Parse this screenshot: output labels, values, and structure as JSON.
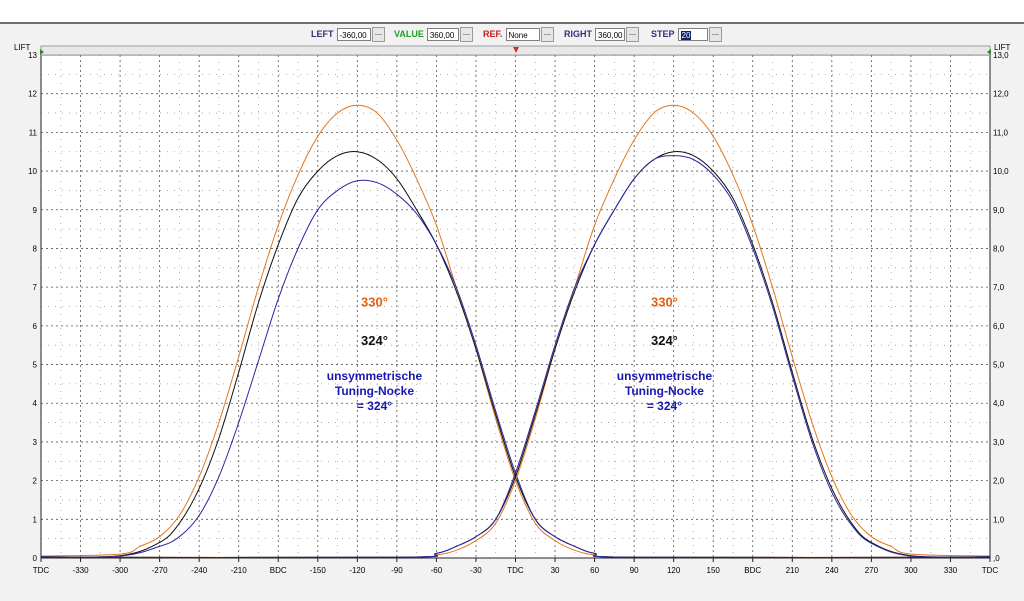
{
  "toolbar": {
    "left_label": "LEFT",
    "left_value": "-360,00",
    "value_label": "VALUE",
    "value_value": "360,00",
    "ref_label": "REF.",
    "ref_value": "None",
    "right_label": "RIGHT",
    "right_value": "360,00",
    "step_label": "STEP",
    "step_value": "20",
    "colors": {
      "left": "#303080",
      "value": "#20a020",
      "ref": "#c02020",
      "right": "#303080",
      "step": "#303080"
    }
  },
  "chart_data": {
    "type": "line",
    "title": "",
    "xlabel": "",
    "ylabel": "LIFT",
    "ylabel_right": "LIFT",
    "xlim": [
      -360,
      360
    ],
    "ylim": [
      0,
      13
    ],
    "x_ticks": [
      -360,
      -330,
      -300,
      -270,
      -240,
      -210,
      -180,
      -150,
      -120,
      -90,
      -60,
      -30,
      0,
      30,
      60,
      90,
      120,
      150,
      180,
      210,
      240,
      270,
      300,
      330,
      360
    ],
    "x_tick_labels": [
      "TDC",
      "-330",
      "-300",
      "-270",
      "-240",
      "-210",
      "BDC",
      "-150",
      "-120",
      "-90",
      "-60",
      "-30",
      "TDC",
      "30",
      "60",
      "90",
      "120",
      "150",
      "BDC",
      "210",
      "240",
      "270",
      "300",
      "330",
      "TDC"
    ],
    "y_ticks": [
      0,
      1,
      2,
      3,
      4,
      5,
      6,
      7,
      8,
      9,
      10,
      11,
      12,
      13
    ],
    "y_tick_labels_left": [
      "0",
      "1",
      "2",
      "3",
      "4",
      "5",
      "6",
      "7",
      "8",
      "9",
      "10",
      "11",
      "12",
      "13"
    ],
    "y_tick_labels_right": [
      ",0",
      "1,0",
      "2,0",
      "3,0",
      "4,0",
      "5,0",
      "6,0",
      "7,0",
      "8,0",
      "9,0",
      "10,0",
      "11,0",
      "12,0",
      "13,0"
    ],
    "grid": true,
    "series": [
      {
        "color": "#e07820",
        "points": [
          [
            -360,
            0.05
          ],
          [
            -300,
            0.1
          ],
          [
            -285,
            0.3
          ],
          [
            -270,
            0.55
          ],
          [
            -255,
            1.1
          ],
          [
            -240,
            2.1
          ],
          [
            -225,
            3.5
          ],
          [
            -210,
            5.2
          ],
          [
            -195,
            7.0
          ],
          [
            -180,
            8.6
          ],
          [
            -165,
            9.9
          ],
          [
            -150,
            10.9
          ],
          [
            -135,
            11.5
          ],
          [
            -120,
            11.7
          ],
          [
            -105,
            11.5
          ],
          [
            -90,
            10.8
          ],
          [
            -75,
            9.8
          ],
          [
            -60,
            8.6
          ],
          [
            -45,
            7.0
          ],
          [
            -30,
            5.4
          ],
          [
            -15,
            3.6
          ],
          [
            0,
            2.0
          ],
          [
            15,
            0.9
          ],
          [
            30,
            0.45
          ],
          [
            45,
            0.2
          ],
          [
            60,
            0.08
          ],
          [
            90,
            0.02
          ],
          [
            360,
            0.02
          ]
        ]
      },
      {
        "color": "#101010",
        "points": [
          [
            -360,
            0.03
          ],
          [
            -300,
            0.06
          ],
          [
            -270,
            0.4
          ],
          [
            -255,
            0.9
          ],
          [
            -240,
            1.8
          ],
          [
            -225,
            3.1
          ],
          [
            -210,
            4.8
          ],
          [
            -195,
            6.6
          ],
          [
            -180,
            8.1
          ],
          [
            -165,
            9.3
          ],
          [
            -150,
            10.0
          ],
          [
            -135,
            10.4
          ],
          [
            -120,
            10.5
          ],
          [
            -105,
            10.3
          ],
          [
            -90,
            9.8
          ],
          [
            -75,
            9.0
          ],
          [
            -60,
            8.1
          ],
          [
            -45,
            6.9
          ],
          [
            -30,
            5.4
          ],
          [
            -15,
            3.7
          ],
          [
            0,
            2.1
          ],
          [
            15,
            1.0
          ],
          [
            30,
            0.55
          ],
          [
            45,
            0.3
          ],
          [
            60,
            0.12
          ],
          [
            90,
            0.02
          ],
          [
            360,
            0.02
          ]
        ]
      },
      {
        "color": "#2828a0",
        "points": [
          [
            -360,
            0.03
          ],
          [
            -300,
            0.05
          ],
          [
            -270,
            0.3
          ],
          [
            -255,
            0.55
          ],
          [
            -240,
            1.1
          ],
          [
            -225,
            2.1
          ],
          [
            -210,
            3.5
          ],
          [
            -195,
            5.1
          ],
          [
            -180,
            6.7
          ],
          [
            -165,
            8.0
          ],
          [
            -150,
            9.0
          ],
          [
            -135,
            9.5
          ],
          [
            -120,
            9.75
          ],
          [
            -105,
            9.7
          ],
          [
            -90,
            9.4
          ],
          [
            -75,
            8.9
          ],
          [
            -60,
            8.1
          ],
          [
            -45,
            7.0
          ],
          [
            -30,
            5.5
          ],
          [
            -15,
            3.8
          ],
          [
            0,
            2.2
          ],
          [
            15,
            1.0
          ],
          [
            30,
            0.55
          ],
          [
            45,
            0.3
          ],
          [
            60,
            0.12
          ],
          [
            90,
            0.02
          ],
          [
            360,
            0.02
          ]
        ]
      },
      {
        "color": "#e07820",
        "points": [
          [
            -360,
            0.02
          ],
          [
            -90,
            0.02
          ],
          [
            -60,
            0.08
          ],
          [
            -45,
            0.2
          ],
          [
            -30,
            0.45
          ],
          [
            -15,
            0.9
          ],
          [
            0,
            2.0
          ],
          [
            15,
            3.6
          ],
          [
            30,
            5.4
          ],
          [
            45,
            7.0
          ],
          [
            60,
            8.6
          ],
          [
            75,
            9.8
          ],
          [
            90,
            10.8
          ],
          [
            105,
            11.5
          ],
          [
            120,
            11.7
          ],
          [
            135,
            11.5
          ],
          [
            150,
            10.9
          ],
          [
            165,
            9.9
          ],
          [
            180,
            8.6
          ],
          [
            195,
            7.0
          ],
          [
            210,
            5.2
          ],
          [
            225,
            3.5
          ],
          [
            240,
            2.1
          ],
          [
            255,
            1.1
          ],
          [
            270,
            0.55
          ],
          [
            285,
            0.3
          ],
          [
            300,
            0.1
          ],
          [
            360,
            0.05
          ]
        ]
      },
      {
        "color": "#101010",
        "points": [
          [
            -360,
            0.02
          ],
          [
            -90,
            0.02
          ],
          [
            -60,
            0.12
          ],
          [
            -45,
            0.3
          ],
          [
            -30,
            0.55
          ],
          [
            -15,
            1.0
          ],
          [
            0,
            2.1
          ],
          [
            15,
            3.7
          ],
          [
            30,
            5.4
          ],
          [
            45,
            6.9
          ],
          [
            60,
            8.1
          ],
          [
            75,
            9.0
          ],
          [
            90,
            9.8
          ],
          [
            105,
            10.3
          ],
          [
            120,
            10.5
          ],
          [
            135,
            10.4
          ],
          [
            150,
            10.0
          ],
          [
            165,
            9.3
          ],
          [
            180,
            8.1
          ],
          [
            195,
            6.6
          ],
          [
            210,
            4.8
          ],
          [
            225,
            3.1
          ],
          [
            240,
            1.8
          ],
          [
            255,
            0.9
          ],
          [
            270,
            0.4
          ],
          [
            300,
            0.06
          ],
          [
            360,
            0.03
          ]
        ]
      },
      {
        "color": "#2828a0",
        "points": [
          [
            -360,
            0.02
          ],
          [
            -90,
            0.02
          ],
          [
            -60,
            0.12
          ],
          [
            -45,
            0.3
          ],
          [
            -30,
            0.55
          ],
          [
            -15,
            1.0
          ],
          [
            0,
            2.2
          ],
          [
            15,
            3.8
          ],
          [
            30,
            5.5
          ],
          [
            45,
            7.0
          ],
          [
            60,
            8.1
          ],
          [
            75,
            9.0
          ],
          [
            90,
            9.8
          ],
          [
            105,
            10.3
          ],
          [
            120,
            10.4
          ],
          [
            135,
            10.3
          ],
          [
            150,
            9.9
          ],
          [
            165,
            9.2
          ],
          [
            180,
            8.0
          ],
          [
            195,
            6.5
          ],
          [
            210,
            4.7
          ],
          [
            225,
            3.0
          ],
          [
            240,
            1.7
          ],
          [
            255,
            0.85
          ],
          [
            270,
            0.38
          ],
          [
            300,
            0.05
          ],
          [
            360,
            0.03
          ]
        ]
      }
    ],
    "annotations": [
      {
        "lines": [
          "330°"
        ],
        "x": -107,
        "y": 6.5,
        "color": "#e06010",
        "size": 13
      },
      {
        "lines": [
          "324°"
        ],
        "x": -107,
        "y": 5.5,
        "color": "#101010",
        "size": 13
      },
      {
        "lines": [
          "unsymmetrische",
          "Tuning-Nocke",
          "= 324°"
        ],
        "x": -107,
        "y": 4.6,
        "color": "#1818b0",
        "size": 12
      },
      {
        "lines": [
          "330°"
        ],
        "x": 113,
        "y": 6.5,
        "color": "#e06010",
        "size": 13
      },
      {
        "lines": [
          "324°"
        ],
        "x": 113,
        "y": 5.5,
        "color": "#101010",
        "size": 13
      },
      {
        "lines": [
          "unsymmetrische",
          "Tuning-Nocke",
          "= 324°"
        ],
        "x": 113,
        "y": 4.6,
        "color": "#1818b0",
        "size": 12
      }
    ]
  }
}
